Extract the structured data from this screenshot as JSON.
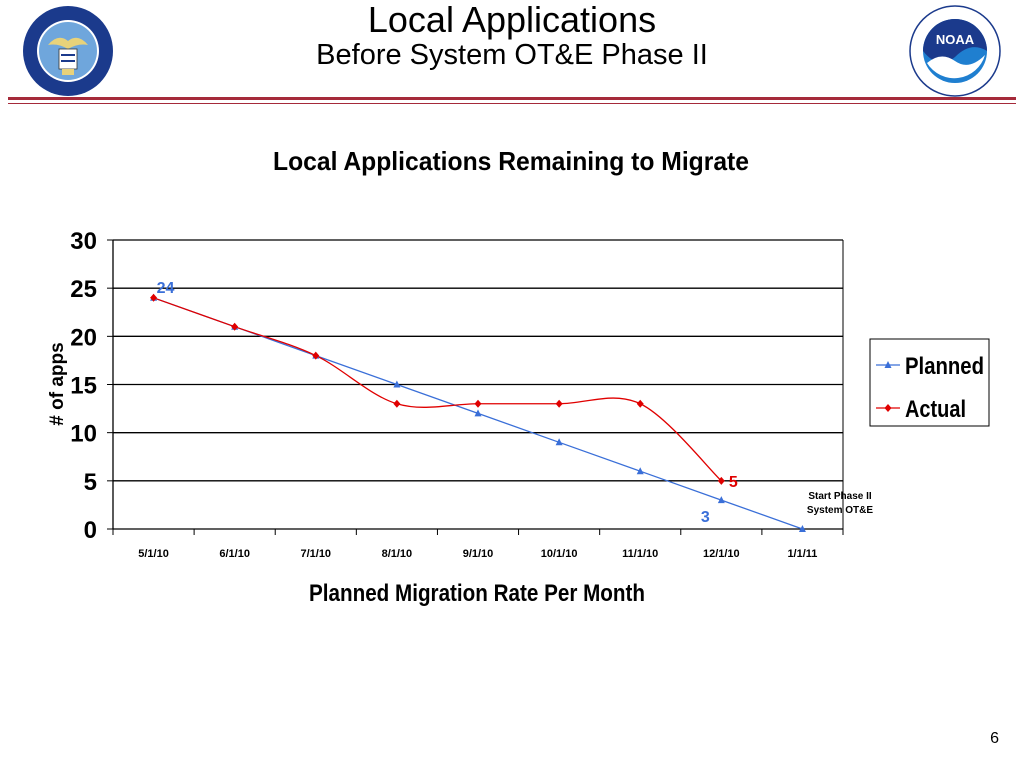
{
  "slide": {
    "title": "Local Applications",
    "subtitle": "Before System OT&E Phase II",
    "page_number": "6",
    "rule_color": "#a52a3a"
  },
  "logos": {
    "left_icon": "department-of-commerce-seal-icon",
    "left_text": "DEPARTMENT OF COMMERCE • UNITED STATES OF AMERICA",
    "right_icon": "noaa-logo-icon",
    "right_text": "NATIONAL OCEANIC AND ATMOSPHERIC ADMINISTRATION • U.S. DEPARTMENT OF COMMERCE",
    "right_center": "NOAA"
  },
  "chart_data": {
    "type": "line",
    "title": "Local Applications Remaining to Migrate",
    "xlabel": "Planned Migration Rate Per Month",
    "ylabel": "# of apps",
    "ylim": [
      0,
      30
    ],
    "yticks": [
      "0",
      "5",
      "10",
      "15",
      "20",
      "25",
      "30"
    ],
    "categories": [
      "5/1/10",
      "6/1/10",
      "7/1/10",
      "8/1/10",
      "9/1/10",
      "10/1/10",
      "11/1/10",
      "12/1/10",
      "1/1/11"
    ],
    "grid": true,
    "legend_position": "right",
    "series": [
      {
        "name": "Planned",
        "color": "#3a6fd8",
        "marker": "triangle",
        "values": [
          24,
          21,
          18,
          15,
          12,
          9,
          6,
          3,
          0
        ]
      },
      {
        "name": "Actual",
        "color": "#e00000",
        "marker": "diamond",
        "values": [
          24,
          21,
          18,
          13,
          13,
          13,
          13,
          5,
          null
        ]
      }
    ],
    "data_labels": [
      {
        "series": "Planned",
        "index": 0,
        "text": "24",
        "color": "#3a6fd8"
      },
      {
        "series": "Planned",
        "index": 7,
        "text": "3",
        "color": "#3a6fd8"
      },
      {
        "series": "Actual",
        "index": 7,
        "text": "5",
        "color": "#e00000"
      }
    ],
    "annotation": [
      "Start Phase II",
      "System OT&E"
    ]
  }
}
